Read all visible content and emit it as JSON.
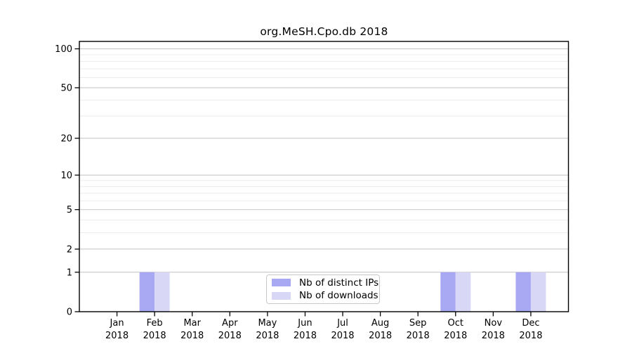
{
  "chart_data": {
    "type": "bar",
    "title": "org.MeSH.Cpo.db 2018",
    "categories": [
      "Jan",
      "Feb",
      "Mar",
      "Apr",
      "May",
      "Jun",
      "Jul",
      "Aug",
      "Sep",
      "Oct",
      "Nov",
      "Dec"
    ],
    "year_label": "2018",
    "series": [
      {
        "name": "Nb of distinct IPs",
        "color": "#a9a9f3",
        "values": [
          0,
          1,
          0,
          0,
          0,
          0,
          0,
          0,
          0,
          1,
          0,
          1
        ]
      },
      {
        "name": "Nb of downloads",
        "color": "#d8d8f6",
        "values": [
          0,
          1,
          0,
          0,
          0,
          0,
          0,
          0,
          0,
          1,
          0,
          1
        ]
      }
    ],
    "y_axis": {
      "scale": "log1p",
      "major_ticks": [
        0,
        1,
        2,
        5,
        10,
        20,
        50,
        100
      ],
      "minor_gridlines": [
        3,
        4,
        6,
        7,
        8,
        9,
        30,
        40,
        60,
        70,
        80,
        90
      ],
      "ylim": [
        0,
        114
      ]
    },
    "xlabel": "",
    "ylabel": "",
    "grid": "horizontal",
    "legend_position": "inside-bottom-center",
    "colors": {
      "frame": "#000000",
      "major_grid": "#c9c9c9",
      "minor_grid": "#ececec",
      "text": "#000000",
      "background": "#ffffff"
    }
  }
}
